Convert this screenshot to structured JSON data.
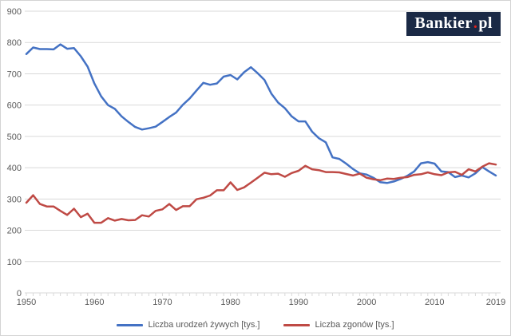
{
  "logo": {
    "brand": "Bankier",
    "dot": ".",
    "tld": "pl"
  },
  "colors": {
    "grid": "#d9d9d9",
    "axis_text": "#595959",
    "logo_bg": "#1a2945",
    "logo_dot": "#e2231a",
    "births_line": "#4472c4",
    "deaths_line": "#bf4a45"
  },
  "chart_data": {
    "type": "line",
    "title": "",
    "xlabel": "",
    "ylabel": "",
    "ylim": [
      0,
      900
    ],
    "y_ticks": [
      0,
      100,
      200,
      300,
      400,
      500,
      600,
      700,
      800,
      900
    ],
    "x_tick_labels": [
      1950,
      1960,
      1970,
      1980,
      1990,
      2000,
      2010,
      2019
    ],
    "grid": "horizontal",
    "legend_position": "bottom",
    "years": [
      1950,
      1951,
      1952,
      1953,
      1954,
      1955,
      1956,
      1957,
      1958,
      1959,
      1960,
      1961,
      1962,
      1963,
      1964,
      1965,
      1966,
      1967,
      1968,
      1969,
      1970,
      1971,
      1972,
      1973,
      1974,
      1975,
      1976,
      1977,
      1978,
      1979,
      1980,
      1981,
      1982,
      1983,
      1984,
      1985,
      1986,
      1987,
      1988,
      1989,
      1990,
      1991,
      1992,
      1993,
      1994,
      1995,
      1996,
      1997,
      1998,
      1999,
      2000,
      2001,
      2002,
      2003,
      2004,
      2005,
      2006,
      2007,
      2008,
      2009,
      2010,
      2011,
      2012,
      2013,
      2014,
      2015,
      2016,
      2017,
      2018,
      2019
    ],
    "series": [
      {
        "name": "Liczba urodzeń żywych [tys.]",
        "color": "#4472c4",
        "values": [
          763,
          784,
          779,
          779,
          778,
          794,
          780,
          782,
          756,
          723,
          669,
          628,
          600,
          588,
          564,
          546,
          530,
          522,
          526,
          531,
          546,
          562,
          576,
          601,
          621,
          646,
          671,
          665,
          669,
          691,
          696,
          682,
          705,
          721,
          702,
          680,
          637,
          608,
          590,
          564,
          548,
          548,
          515,
          494,
          481,
          433,
          428,
          413,
          396,
          382,
          378,
          368,
          354,
          351,
          356,
          364,
          374,
          388,
          414,
          418,
          413,
          388,
          386,
          370,
          375,
          369,
          382,
          402,
          388,
          375
        ]
      },
      {
        "name": "Liczba zgonów [tys.]",
        "color": "#bf4a45",
        "values": [
          288,
          312,
          284,
          276,
          276,
          262,
          249,
          269,
          242,
          253,
          224,
          224,
          239,
          231,
          236,
          232,
          233,
          248,
          244,
          262,
          267,
          284,
          265,
          277,
          277,
          299,
          304,
          311,
          328,
          328,
          353,
          329,
          337,
          352,
          368,
          384,
          379,
          381,
          371,
          383,
          390,
          406,
          395,
          392,
          386,
          386,
          385,
          380,
          375,
          381,
          368,
          363,
          360,
          365,
          364,
          368,
          370,
          377,
          379,
          385,
          379,
          376,
          385,
          387,
          377,
          395,
          388,
          403,
          414,
          410
        ]
      }
    ]
  }
}
